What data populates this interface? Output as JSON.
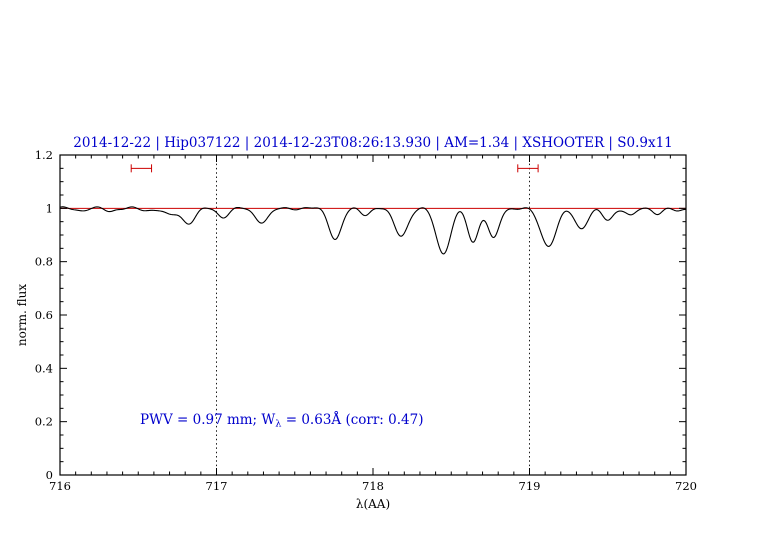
{
  "title": "2014-12-22 | Hip037122 | 2014-12-23T08:26:13.930 | AM=1.34 | XSHOOTER | S0.9x11",
  "annotation": {
    "part1": "PWV = 0.97 mm; W",
    "sub": "λ",
    "part2": " = 0.63Å (corr: 0.47)"
  },
  "chart_data": {
    "type": "line",
    "title": "2014-12-22 | Hip037122 | 2014-12-23T08:26:13.930 | AM=1.34 | XSHOOTER | S0.9x11",
    "xlabel": "λ(AA)",
    "ylabel": "norm. flux",
    "xlim": [
      716,
      720
    ],
    "ylim": [
      0,
      1.2
    ],
    "x_ticks": [
      716,
      717,
      718,
      719,
      720
    ],
    "x_tick_labels": [
      "716",
      "717",
      "718",
      "719",
      "720"
    ],
    "y_ticks": [
      0,
      0.2,
      0.4,
      0.6,
      0.8,
      1,
      1.2
    ],
    "y_tick_labels": [
      "0",
      "0.2",
      "0.4",
      "0.6",
      "0.8",
      "1",
      "1.2"
    ],
    "x_minor_step": 0.1,
    "y_minor_step": 0.05,
    "grid": false,
    "legend": "none",
    "dotted_vlines": [
      717,
      719
    ],
    "continuum_line": {
      "y": 1.0,
      "color": "#cc0000"
    },
    "band_markers": [
      {
        "x_center": 716.52,
        "half_width": 0.065,
        "y": 1.15
      },
      {
        "x_center": 718.99,
        "half_width": 0.065,
        "y": 1.15
      }
    ],
    "marker_color": "#cc0000",
    "annotation_text": "PWV = 0.97 mm; Wλ = 0.63Å (corr: 0.47)",
    "annotation_color": "#0000cc",
    "series": [
      {
        "name": "normalized telluric spectrum",
        "color": "#000000",
        "model": "continuum minus sum of gaussian absorption lines plus small sinusoidal noise",
        "continuum": 1.0,
        "sample_step": 0.005,
        "noise": [
          {
            "amp": 0.0035,
            "period": 0.23,
            "phase": 1.3
          },
          {
            "amp": 0.0022,
            "period": 0.11,
            "phase": 0.5
          }
        ],
        "lines": [
          {
            "center": 716.14,
            "depth": 0.008,
            "sigma": 0.03
          },
          {
            "center": 716.32,
            "depth": 0.01,
            "sigma": 0.03
          },
          {
            "center": 716.55,
            "depth": 0.008,
            "sigma": 0.035
          },
          {
            "center": 716.7,
            "depth": 0.025,
            "sigma": 0.04
          },
          {
            "center": 716.82,
            "depth": 0.055,
            "sigma": 0.042
          },
          {
            "center": 717.04,
            "depth": 0.032,
            "sigma": 0.035
          },
          {
            "center": 717.29,
            "depth": 0.05,
            "sigma": 0.045
          },
          {
            "center": 717.76,
            "depth": 0.115,
            "sigma": 0.04
          },
          {
            "center": 717.95,
            "depth": 0.022,
            "sigma": 0.03
          },
          {
            "center": 718.18,
            "depth": 0.1,
            "sigma": 0.045
          },
          {
            "center": 718.45,
            "depth": 0.17,
            "sigma": 0.045
          },
          {
            "center": 718.64,
            "depth": 0.125,
            "sigma": 0.035
          },
          {
            "center": 718.77,
            "depth": 0.115,
            "sigma": 0.035
          },
          {
            "center": 719.12,
            "depth": 0.14,
            "sigma": 0.05
          },
          {
            "center": 719.33,
            "depth": 0.075,
            "sigma": 0.04
          },
          {
            "center": 719.5,
            "depth": 0.045,
            "sigma": 0.035
          },
          {
            "center": 719.65,
            "depth": 0.028,
            "sigma": 0.03
          },
          {
            "center": 719.82,
            "depth": 0.018,
            "sigma": 0.03
          },
          {
            "center": 719.95,
            "depth": 0.012,
            "sigma": 0.03
          }
        ]
      }
    ]
  }
}
